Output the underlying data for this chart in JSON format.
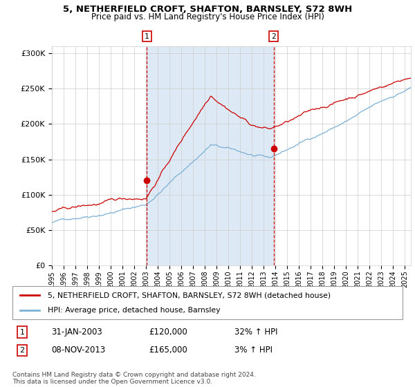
{
  "title_line1": "5, NETHERFIELD CROFT, SHAFTON, BARNSLEY, S72 8WH",
  "title_line2": "Price paid vs. HM Land Registry's House Price Index (HPI)",
  "legend_label1": "5, NETHERFIELD CROFT, SHAFTON, BARNSLEY, S72 8WH (detached house)",
  "legend_label2": "HPI: Average price, detached house, Barnsley",
  "marker1_date": "31-JAN-2003",
  "marker1_price": 120000,
  "marker1_label": "32% ↑ HPI",
  "marker2_date": "08-NOV-2013",
  "marker2_price": 165000,
  "marker2_label": "3% ↑ HPI",
  "footer": "Contains HM Land Registry data © Crown copyright and database right 2024.\nThis data is licensed under the Open Government Licence v3.0.",
  "red_color": "#CC0000",
  "blue_color": "#7BAFD4",
  "bg_color": "#DDEAF5",
  "grid_color": "#CCCCCC",
  "ylim": [
    0,
    310000
  ],
  "yticks": [
    0,
    50000,
    100000,
    150000,
    200000,
    250000,
    300000
  ],
  "xlim_start": 1995.0,
  "xlim_end": 2025.5,
  "m1_year": 2003.08,
  "m2_year": 2013.84
}
